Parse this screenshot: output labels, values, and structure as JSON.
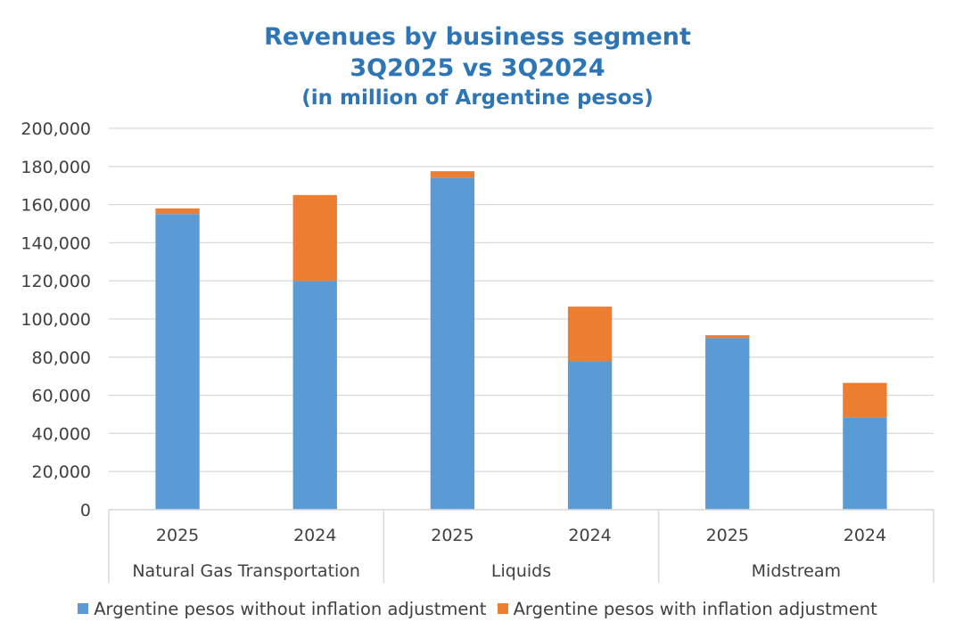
{
  "chart_data": {
    "type": "bar",
    "stacked": true,
    "title": "Revenues by business segment",
    "subtitle_line2": "3Q2025 vs 3Q2024",
    "subtitle_line3": "(in million of Argentine pesos)",
    "groups": [
      {
        "label": "Natural Gas Transportation",
        "categories": [
          "2025",
          "2024"
        ]
      },
      {
        "label": "Liquids",
        "categories": [
          "2025",
          "2024"
        ]
      },
      {
        "label": "Midstream",
        "categories": [
          "2025",
          "2024"
        ]
      }
    ],
    "series": [
      {
        "name": "Argentine pesos without inflation adjustment",
        "color": "#5B9BD5",
        "values": [
          155000,
          120000,
          174000,
          78000,
          90000,
          48500
        ]
      },
      {
        "name": "Argentine pesos with inflation adjustment",
        "color": "#ED7D31",
        "values": [
          3000,
          45000,
          3500,
          28500,
          1500,
          18000
        ]
      }
    ],
    "y_ticks": [
      "0",
      "20,000",
      "40,000",
      "60,000",
      "80,000",
      "100,000",
      "120,000",
      "140,000",
      "160,000",
      "180,000",
      "200,000"
    ],
    "ylim": [
      0,
      200000
    ],
    "grid": true,
    "legend_position": "bottom"
  }
}
